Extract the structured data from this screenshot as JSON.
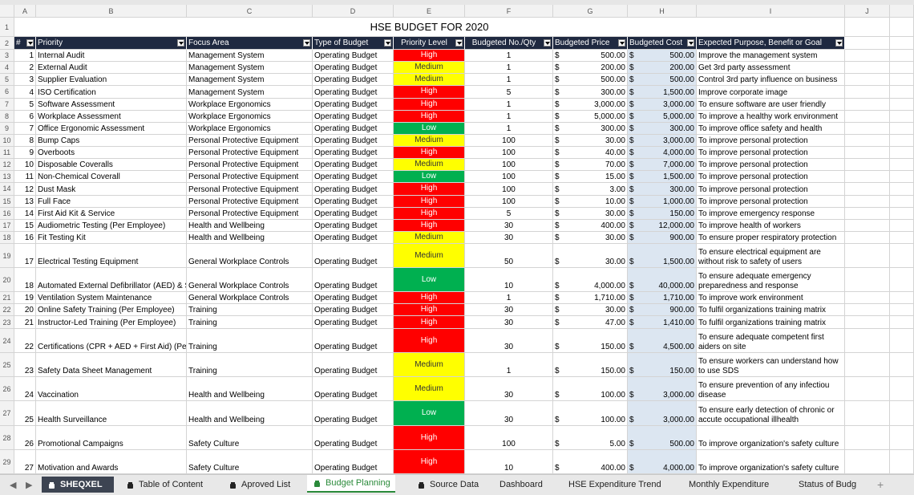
{
  "column_letters": [
    "A",
    "B",
    "C",
    "D",
    "E",
    "F",
    "G",
    "H",
    "I",
    "J"
  ],
  "row_numbers": [
    1,
    2,
    3,
    4,
    5,
    6,
    7,
    8,
    9,
    10,
    11,
    12,
    13,
    14,
    15,
    16,
    17,
    18,
    19,
    20,
    21,
    22,
    23,
    24,
    25,
    26,
    27,
    28,
    29
  ],
  "title": "HSE BUDGET FOR 2020",
  "currency": "$",
  "level_colors": {
    "High": "#ff0000",
    "Medium": "#ffff00",
    "Low": "#00b050"
  },
  "table": {
    "header": [
      "#",
      "Priority",
      "Focus Area",
      "Type of Budget",
      "Priority Level",
      "Budgeted No./Qty",
      "Budgeted Price",
      "Budgeted Cost",
      "Expected Purpose, Benefit or Goal"
    ],
    "rows": [
      [
        1,
        "Internal Audit",
        "Management System",
        "Operating Budget",
        "High",
        1,
        "500.00",
        "500.00",
        "Improve the management system"
      ],
      [
        2,
        "External Audit",
        "Management System",
        "Operating Budget",
        "Medium",
        1,
        "200.00",
        "200.00",
        "Get 3rd party assessment"
      ],
      [
        3,
        "Supplier Evaluation",
        "Management System",
        "Operating Budget",
        "Medium",
        1,
        "500.00",
        "500.00",
        "Control 3rd party influence on business"
      ],
      [
        4,
        "ISO Certification",
        "Management System",
        "Operating Budget",
        "High",
        5,
        "300.00",
        "1,500.00",
        "Improve corporate image"
      ],
      [
        5,
        "Software Assessment",
        "Workplace Ergonomics",
        "Operating Budget",
        "High",
        1,
        "3,000.00",
        "3,000.00",
        "To ensure software are user friendly"
      ],
      [
        6,
        "Workplace Assessment",
        "Workplace Ergonomics",
        "Operating Budget",
        "High",
        1,
        "5,000.00",
        "5,000.00",
        "To improve a healthy work environment"
      ],
      [
        7,
        "Office Ergonomic Assessment",
        "Workplace Ergonomics",
        "Operating Budget",
        "Low",
        1,
        "300.00",
        "300.00",
        "To improve office safety and health"
      ],
      [
        8,
        "Bump Caps",
        "Personal Protective Equipment",
        "Operating Budget",
        "Medium",
        100,
        "30.00",
        "3,000.00",
        "To improve personal protection"
      ],
      [
        9,
        "Overboots",
        "Personal Protective Equipment",
        "Operating Budget",
        "High",
        100,
        "40.00",
        "4,000.00",
        "To improve personal protection"
      ],
      [
        10,
        "Disposable Coveralls",
        "Personal Protective Equipment",
        "Operating Budget",
        "Medium",
        100,
        "70.00",
        "7,000.00",
        "To improve personal protection"
      ],
      [
        11,
        "Non-Chemical Coverall",
        "Personal Protective Equipment",
        "Operating Budget",
        "Low",
        100,
        "15.00",
        "1,500.00",
        "To improve personal protection"
      ],
      [
        12,
        "Dust Mask",
        "Personal Protective Equipment",
        "Operating Budget",
        "High",
        100,
        "3.00",
        "300.00",
        "To improve personal protection"
      ],
      [
        13,
        "Full Face",
        "Personal Protective Equipment",
        "Operating Budget",
        "High",
        100,
        "10.00",
        "1,000.00",
        "To improve personal protection"
      ],
      [
        14,
        "First Aid Kit & Service",
        "Personal Protective Equipment",
        "Operating Budget",
        "High",
        5,
        "30.00",
        "150.00",
        "To improve emergency response"
      ],
      [
        15,
        "Audiometric Testing (Per Employee)",
        "Health and Wellbeing",
        "Operating Budget",
        "High",
        30,
        "400.00",
        "12,000.00",
        "To improve health of workers"
      ],
      [
        16,
        "Fit Testing Kit",
        "Health and Wellbeing",
        "Operating Budget",
        "Medium",
        30,
        "30.00",
        "900.00",
        "To ensure proper respiratory protection"
      ],
      [
        17,
        "Electrical Testing Equipment",
        "General Workplace Controls",
        "Operating Budget",
        "Medium",
        50,
        "30.00",
        "1,500.00",
        "To ensure electrical equipment are without risk to safety of users"
      ],
      [
        18,
        "Automated External Defibrillator (AED) & S",
        "General Workplace Controls",
        "Operating Budget",
        "Low",
        10,
        "4,000.00",
        "40,000.00",
        "To ensure adequate emergency preparedness and response"
      ],
      [
        19,
        "Ventilation System Maintenance",
        "General Workplace Controls",
        "Operating Budget",
        "High",
        1,
        "1,710.00",
        "1,710.00",
        "To improve work environment"
      ],
      [
        20,
        "Online Safety Training (Per Employee)",
        "Training",
        "Operating Budget",
        "High",
        30,
        "30.00",
        "900.00",
        "To fulfil organizations training matrix"
      ],
      [
        21,
        "Instructor-Led Training (Per Employee)",
        "Training",
        "Operating Budget",
        "High",
        30,
        "47.00",
        "1,410.00",
        "To fulfil organizations training matrix"
      ],
      [
        22,
        "Certifications (CPR + AED + First Aid) (Per E",
        "Training",
        "Operating Budget",
        "High",
        30,
        "150.00",
        "4,500.00",
        "To ensure adequate competent first aiders on site"
      ],
      [
        23,
        "Safety Data Sheet Management",
        "Training",
        "Operating Budget",
        "Medium",
        1,
        "150.00",
        "150.00",
        "To ensure workers can understand how to use SDS"
      ],
      [
        24,
        "Vaccination",
        "Health and Wellbeing",
        "Operating Budget",
        "Medium",
        30,
        "100.00",
        "3,000.00",
        "To ensure prevention of any infectiou disease"
      ],
      [
        25,
        "Health Surveillance",
        "Health and Wellbeing",
        "Operating Budget",
        "Low",
        30,
        "100.00",
        "3,000.00",
        "To ensure early detection of chronic or accute occupational illhealth"
      ],
      [
        26,
        "Promotional Campaigns",
        "Safety Culture",
        "Operating Budget",
        "High",
        100,
        "5.00",
        "500.00",
        "To improve organization's safety culture"
      ],
      [
        27,
        "Motivation and Awards",
        "Safety Culture",
        "Operating Budget",
        "High",
        10,
        "400.00",
        "4,000.00",
        "To improve organization's safety culture"
      ]
    ]
  },
  "tabs": [
    "SHEQXEL",
    "Table of Content",
    "Aproved List",
    "Budget Planning",
    "Source Data",
    "Dashboard",
    "HSE Expenditure Trend",
    "Monthly Expenditure",
    "Status of Budg"
  ]
}
